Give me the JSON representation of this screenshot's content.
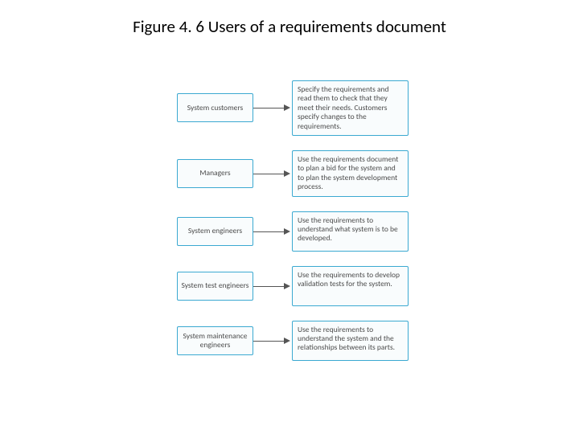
{
  "title": "Figure 4. 6 Users of a requirements document",
  "title_fontsize": 21,
  "title_color": "#000000",
  "background_color": "#ffffff",
  "diagram": {
    "type": "flowchart",
    "role_box": {
      "width": 95,
      "border_color": "#3ba9d1",
      "fill_color": "#f9fcfd",
      "text_color": "#4a4a4a",
      "fontsize": 9.5
    },
    "desc_box": {
      "width": 145,
      "border_color": "#3ba9d1",
      "fill_color": "#f9fcfd",
      "text_color": "#4a4a4a",
      "fontsize": 9.5
    },
    "arrow": {
      "length": 48,
      "color": "#555555"
    },
    "row_gap": 18,
    "rows": [
      {
        "role": "System customers",
        "desc": "Specify the requirements and read them to check that they meet their needs. Customers specify changes to the requirements."
      },
      {
        "role": "Managers",
        "desc": "Use the requirements document to plan a bid for the system and to plan the system development process."
      },
      {
        "role": "System engineers",
        "desc": "Use the requirements to understand what system is to be developed."
      },
      {
        "role": "System test engineers",
        "desc": "Use the requirements to develop validation tests for the system."
      },
      {
        "role": "System maintenance engineers",
        "desc": "Use the requirements to understand the system and the relationships between its parts."
      }
    ]
  }
}
